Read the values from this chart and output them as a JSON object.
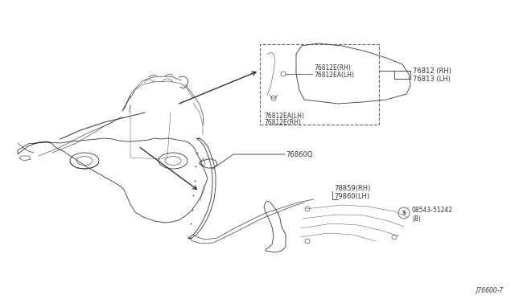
{
  "bg_color": "#ffffff",
  "fig_width": 6.4,
  "fig_height": 3.72,
  "dpi": 100,
  "diagram_ref": "J76600-7",
  "parts": {
    "bracket": {
      "label_76812_RH": "76812 (RH)",
      "label_76813_LH": "76813 (LH)",
      "label_76812E_RH_1": "76812E(RH)",
      "label_76812EA_LH_1": "76812EA(LH)",
      "label_76812E_RH_2": "76812E(RH)",
      "label_76812EA_LH_2": "76812EA(LH)"
    },
    "molding": {
      "label_76860Q": "76860Q",
      "label_78859_RH": "78859(RH)",
      "label_79860_LH": "79860(LH)"
    },
    "clip": {
      "label1": "08543-51242",
      "label2": "(8)"
    }
  },
  "car": {
    "color": "#333333",
    "lw": 0.6
  }
}
